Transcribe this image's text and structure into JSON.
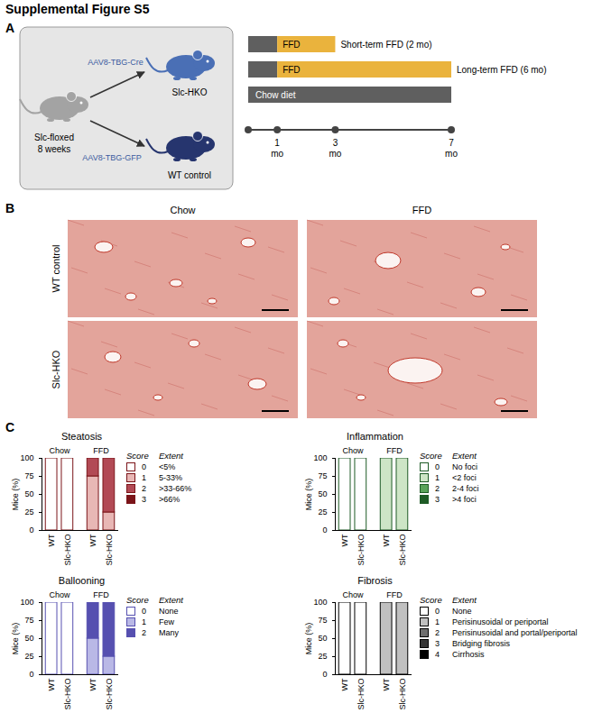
{
  "figure_title": "Supplemental Figure S5",
  "panel_a": {
    "label": "A",
    "source": {
      "name": "Slc-floxed",
      "age": "8 weeks"
    },
    "arms": [
      {
        "vector": "AAV8-TBG-Cre",
        "group": "Slc-HKO"
      },
      {
        "vector": "AAV8-TBG-GFP",
        "group": "WT control"
      }
    ],
    "timeline": {
      "range": [
        0,
        7
      ],
      "ticks": [
        1,
        3,
        7
      ],
      "unit": "mo",
      "rows": [
        {
          "note": "Short-term FFD (2 mo)",
          "segments": [
            {
              "start": 0,
              "end": 1,
              "color": "#5f5f5f"
            },
            {
              "start": 1,
              "end": 3,
              "color": "#eab33d",
              "label": "FFD"
            }
          ]
        },
        {
          "note": "Long-term FFD (6 mo)",
          "segments": [
            {
              "start": 0,
              "end": 1,
              "color": "#5f5f5f"
            },
            {
              "start": 1,
              "end": 7,
              "color": "#eab33d",
              "label": "FFD"
            }
          ]
        },
        {
          "segments": [
            {
              "start": 0,
              "end": 7,
              "color": "#5f5f5f",
              "label": "Chow diet"
            }
          ]
        }
      ]
    }
  },
  "panel_b": {
    "label": "B",
    "columns": [
      "Chow",
      "FFD"
    ],
    "rows": [
      "WT control",
      "Slc-HKO"
    ]
  },
  "panel_c": {
    "label": "C"
  },
  "chart_data": [
    {
      "type": "bar",
      "stacked": true,
      "title": "Steatosis",
      "categories": [
        "WT",
        "Slc-HKO",
        "WT",
        "Slc-HKO"
      ],
      "groups": [
        {
          "label": "Chow",
          "categories": [
            0,
            1
          ]
        },
        {
          "label": "FFD",
          "categories": [
            2,
            3
          ]
        }
      ],
      "ylabel": "Mice (%)",
      "ylim": [
        0,
        100
      ],
      "yticks": [
        0,
        25,
        50,
        75,
        100
      ],
      "legend": "right",
      "legend_headers": [
        "Score",
        "Extent"
      ],
      "series": [
        {
          "name": "0",
          "extent": "<5%",
          "color": "#ffffff",
          "values": [
            100,
            100,
            0,
            0
          ]
        },
        {
          "name": "1",
          "extent": "5-33%",
          "color": "#e8b7b5",
          "values": [
            0,
            0,
            75,
            25
          ]
        },
        {
          "name": "2",
          "extent": ">33-66%",
          "color": "#b24a55",
          "values": [
            0,
            0,
            25,
            75
          ]
        },
        {
          "name": "3",
          "extent": ">66%",
          "color": "#7b1419",
          "values": [
            0,
            0,
            0,
            0
          ]
        }
      ]
    },
    {
      "type": "bar",
      "stacked": true,
      "title": "Inflammation",
      "categories": [
        "WT",
        "Slc-HKO",
        "WT",
        "Slc-HKO"
      ],
      "groups": [
        {
          "label": "Chow",
          "categories": [
            0,
            1
          ]
        },
        {
          "label": "FFD",
          "categories": [
            2,
            3
          ]
        }
      ],
      "ylabel": "Mice (%)",
      "ylim": [
        0,
        100
      ],
      "yticks": [
        0,
        25,
        50,
        75,
        100
      ],
      "legend": "right",
      "legend_headers": [
        "Score",
        "Extent"
      ],
      "series": [
        {
          "name": "0",
          "extent": "No foci",
          "color": "#ffffff",
          "values": [
            100,
            100,
            0,
            0
          ]
        },
        {
          "name": "1",
          "extent": "<2 foci",
          "color": "#cde5c6",
          "values": [
            0,
            0,
            100,
            100
          ]
        },
        {
          "name": "2",
          "extent": "2-4 foci",
          "color": "#5aa35a",
          "values": [
            0,
            0,
            0,
            0
          ]
        },
        {
          "name": "3",
          "extent": ">4 foci",
          "color": "#1e5b26",
          "values": [
            0,
            0,
            0,
            0
          ]
        }
      ]
    },
    {
      "type": "bar",
      "stacked": true,
      "title": "Ballooning",
      "categories": [
        "WT",
        "Slc-HKO",
        "WT",
        "Slc-HKO"
      ],
      "groups": [
        {
          "label": "Chow",
          "categories": [
            0,
            1
          ]
        },
        {
          "label": "FFD",
          "categories": [
            2,
            3
          ]
        }
      ],
      "ylabel": "Mice (%)",
      "ylim": [
        0,
        100
      ],
      "yticks": [
        0,
        25,
        50,
        75,
        100
      ],
      "legend": "right",
      "legend_headers": [
        "Score",
        "Extent"
      ],
      "series": [
        {
          "name": "0",
          "extent": "None",
          "color": "#ffffff",
          "values": [
            100,
            100,
            0,
            0
          ]
        },
        {
          "name": "1",
          "extent": "Few",
          "color": "#b9b8e6",
          "values": [
            0,
            0,
            50,
            25
          ]
        },
        {
          "name": "2",
          "extent": "Many",
          "color": "#5650b0",
          "values": [
            0,
            0,
            50,
            75
          ]
        }
      ]
    },
    {
      "type": "bar",
      "stacked": true,
      "title": "Fibrosis",
      "categories": [
        "WT",
        "Slc-HKO",
        "WT",
        "Slc-HKO"
      ],
      "groups": [
        {
          "label": "Chow",
          "categories": [
            0,
            1
          ]
        },
        {
          "label": "FFD",
          "categories": [
            2,
            3
          ]
        }
      ],
      "ylabel": "Mice (%)",
      "ylim": [
        0,
        100
      ],
      "yticks": [
        0,
        25,
        50,
        75,
        100
      ],
      "legend": "right",
      "legend_headers": [
        "Score",
        "Extent"
      ],
      "series": [
        {
          "name": "0",
          "extent": "None",
          "color": "#ffffff",
          "values": [
            100,
            100,
            0,
            0
          ]
        },
        {
          "name": "1",
          "extent": "Perisinusoidal or periportal",
          "color": "#c0c0c0",
          "values": [
            0,
            0,
            100,
            100
          ]
        },
        {
          "name": "2",
          "extent": "Perisinusoidal and portal/periportal",
          "color": "#6e6e6e",
          "values": [
            0,
            0,
            0,
            0
          ]
        },
        {
          "name": "3",
          "extent": "Bridging fibrosis",
          "color": "#333333",
          "values": [
            0,
            0,
            0,
            0
          ]
        },
        {
          "name": "4",
          "extent": "Cirrhosis",
          "color": "#000000",
          "values": [
            0,
            0,
            0,
            0
          ]
        }
      ]
    }
  ]
}
